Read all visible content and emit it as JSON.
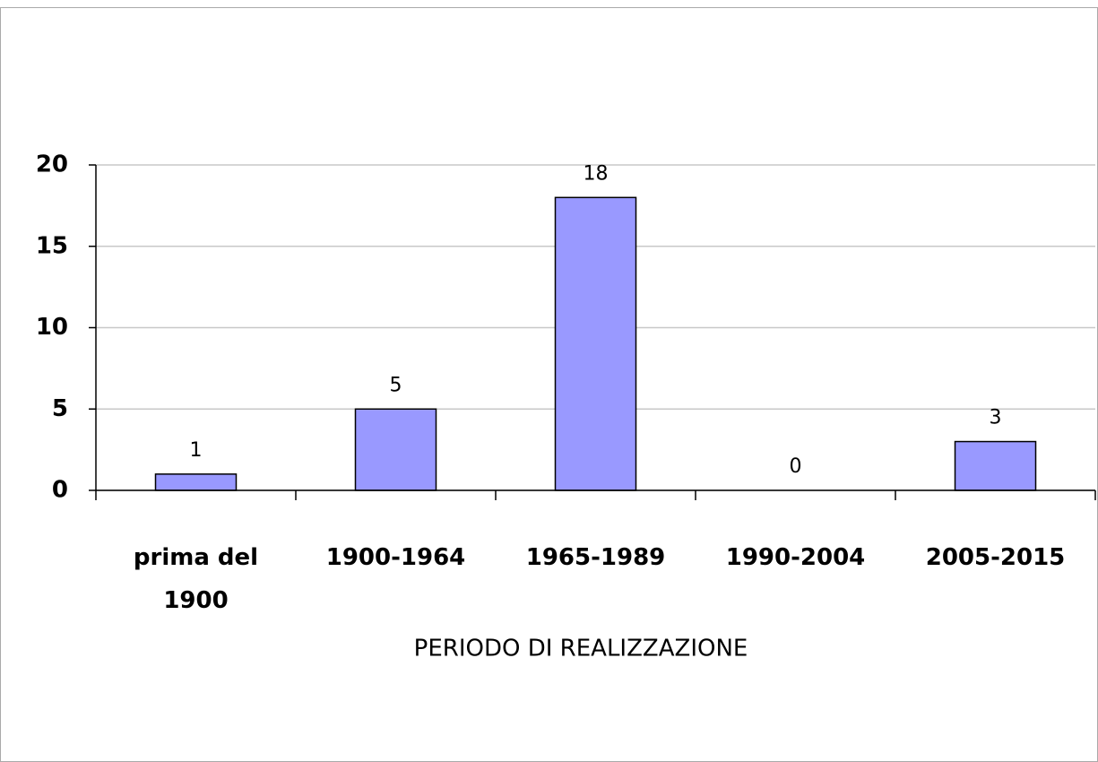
{
  "chart_data": {
    "type": "bar",
    "x_label": "PERIODO DI REALIZZAZIONE",
    "categories": [
      "prima del 1900",
      "1900-1964",
      "1965-1989",
      "1990-2004",
      "2005-2015"
    ],
    "values": [
      1,
      5,
      18,
      0,
      3
    ],
    "color": "#9999ff",
    "ylim": [
      0,
      20
    ],
    "yticks": [
      0,
      5,
      10,
      15,
      20
    ],
    "grid": true
  }
}
